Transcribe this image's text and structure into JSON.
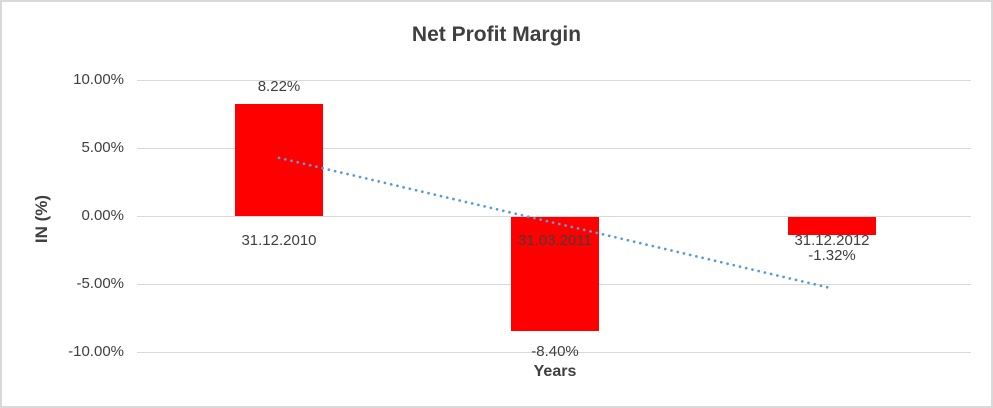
{
  "chart_data": {
    "type": "bar",
    "title": "Net Profit Margin",
    "xlabel": "Years",
    "ylabel": "IN (%)",
    "categories": [
      "31.12.2010",
      "31.03.2011",
      "31.12.2012"
    ],
    "values": [
      8.22,
      -8.4,
      -1.32
    ],
    "value_labels": [
      "8.22%",
      "-8.40%",
      "-1.32%"
    ],
    "ylim": [
      -10,
      10
    ],
    "yticks": [
      10,
      5,
      0,
      -5,
      -10
    ],
    "ytick_labels": [
      "10.00%",
      "5.00%",
      "0.00%",
      "-5.00%",
      "-10.00%"
    ],
    "grid": true,
    "legend": "none",
    "bar_color": "#ff0000",
    "label_color": "#3f3f3f",
    "grid_color": "#d9d9d9",
    "trendline": {
      "type": "linear",
      "style": "dotted",
      "color": "#5b9bd5",
      "start_value": 4.27,
      "end_value": -5.27
    }
  }
}
